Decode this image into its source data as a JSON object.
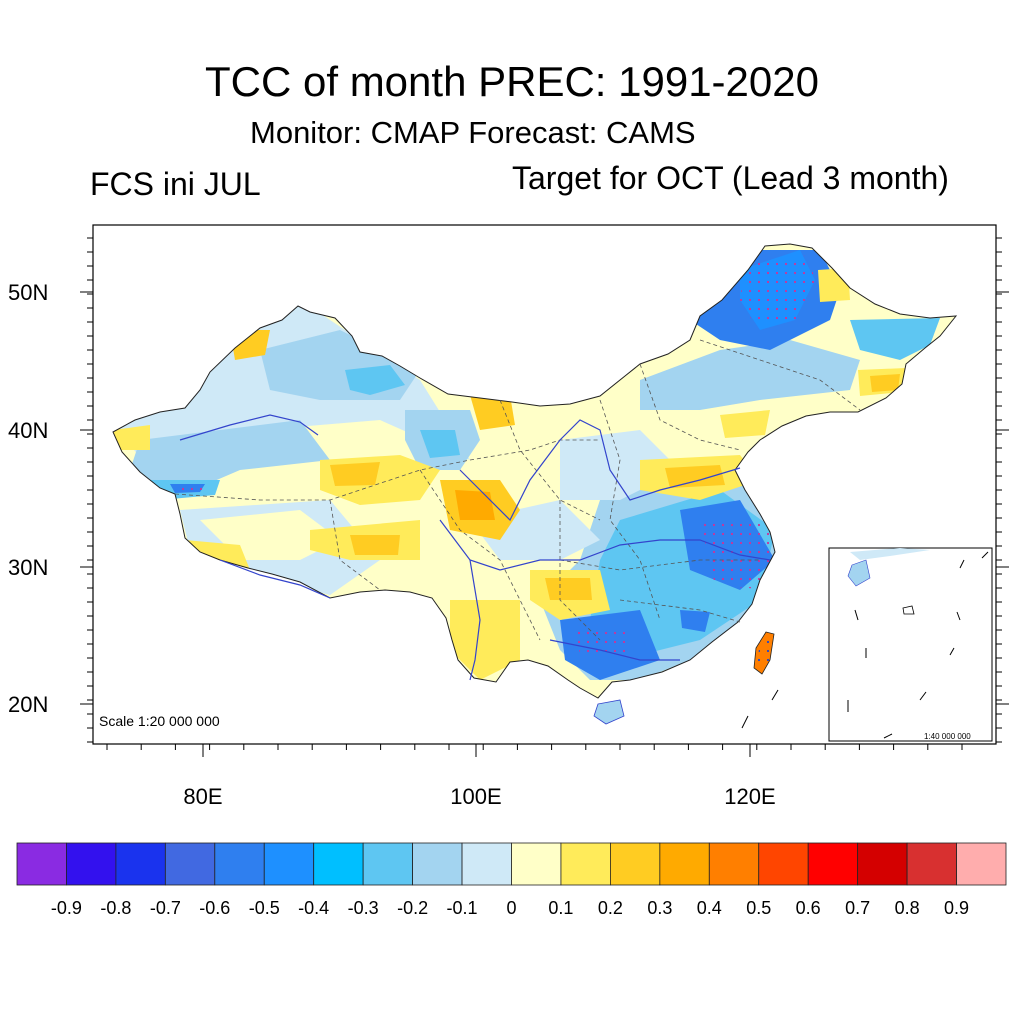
{
  "title": "TCC of month PREC: 1991-2020",
  "subtitle": "Monitor: CMAP   Forecast: CAMS",
  "left_label": "FCS ini JUL",
  "right_label": "Target for OCT (Lead 3 month)",
  "scale_text": "Scale 1:20 000 000",
  "inset_scale_text": "1:40 000 000",
  "axes": {
    "lat_ticks": [
      "50N",
      "40N",
      "30N",
      "20N"
    ],
    "lon_ticks": [
      "80E",
      "100E",
      "120E"
    ]
  },
  "colorbar": {
    "colors": [
      "#8a2be2",
      "#3311ee",
      "#1a33ee",
      "#4169e1",
      "#2f7fef",
      "#1e90ff",
      "#00bfff",
      "#5ec6f2",
      "#a3d4f0",
      "#cfe9f7",
      "#ffffc8",
      "#ffeb5a",
      "#ffcc22",
      "#ffaa00",
      "#ff7f00",
      "#ff4500",
      "#ff0000",
      "#d40000",
      "#d83030",
      "#ffadad"
    ],
    "labels": [
      "-0.9",
      "-0.8",
      "-0.7",
      "-0.6",
      "-0.5",
      "-0.4",
      "-0.3",
      "-0.2",
      "-0.1",
      "0",
      "0.1",
      "0.2",
      "0.3",
      "0.4",
      "0.5",
      "0.6",
      "0.7",
      "0.8",
      "0.9"
    ]
  }
}
